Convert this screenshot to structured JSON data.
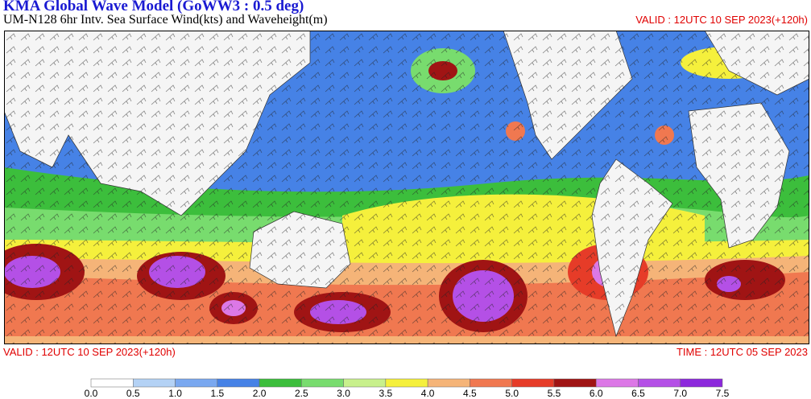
{
  "header": {
    "title": "KMA  Global Wave Model (GoWW3 : 0.5 deg)",
    "subtitle": "UM-N128  6hr Intv. Sea Surface Wind(kts) and Waveheight(m)",
    "valid_top": "VALID : 12UTC 10 SEP 2023(+120h)"
  },
  "footer": {
    "valid": "VALID : 12UTC 10 SEP 2023(+120h)",
    "time": "TIME : 12UTC 05 SEP 2023"
  },
  "colorbar": {
    "labels": [
      "0.0",
      "0.5",
      "1.0",
      "1.5",
      "2.0",
      "2.5",
      "3.0",
      "3.5",
      "4.0",
      "4.5",
      "5.0",
      "5.5",
      "6.0",
      "6.5",
      "7.0",
      "7.5"
    ],
    "colors": [
      "#ffffff",
      "#b4d2f5",
      "#7aa8f0",
      "#4682e6",
      "#3cbe3c",
      "#78dc6e",
      "#c8f08c",
      "#f5f03c",
      "#f5b478",
      "#f07850",
      "#e63c28",
      "#a01414",
      "#dc78e6",
      "#b450e6",
      "#8c28dc"
    ]
  }
}
